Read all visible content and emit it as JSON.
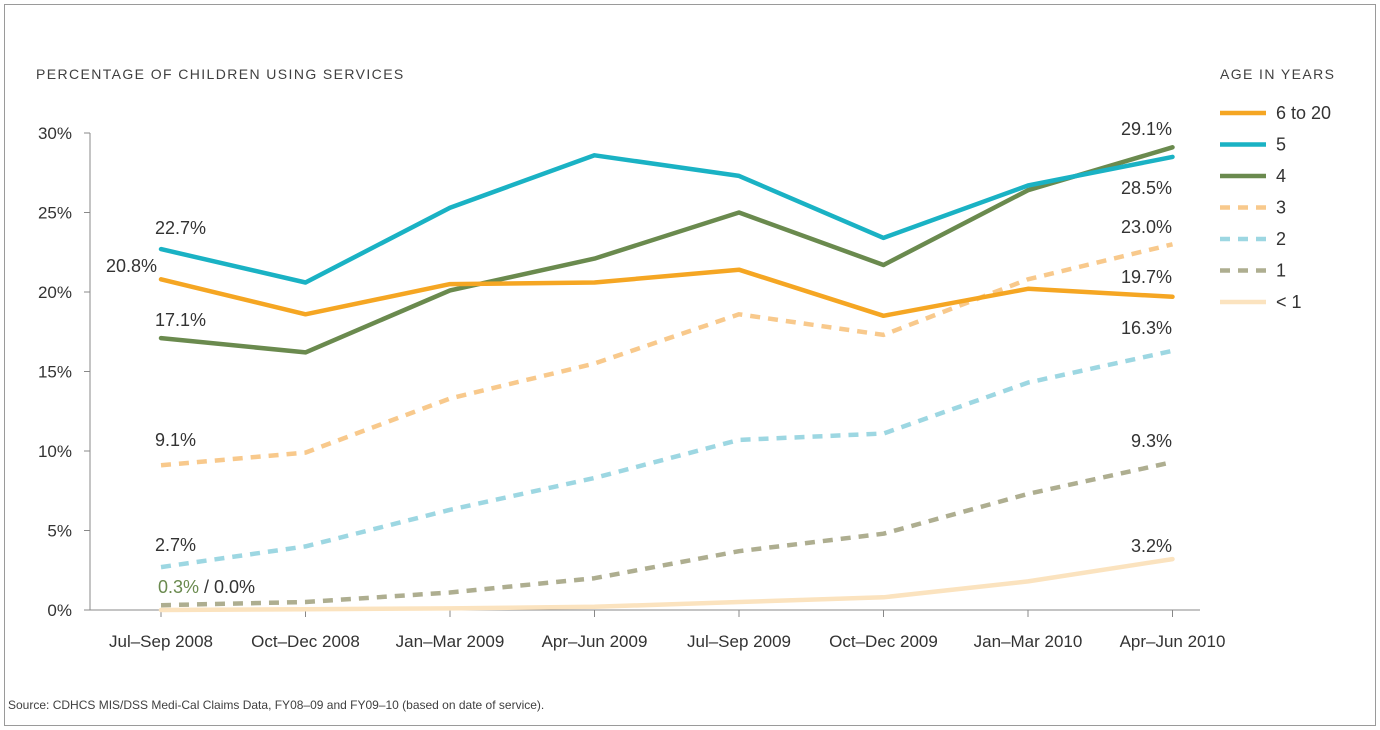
{
  "y_axis_title": "PERCENTAGE OF CHILDREN USING SERVICES",
  "legend_title": "AGE IN YEARS",
  "source": "Source: CDHCS MIS/DSS Medi-Cal Claims Data, FY08–09 and FY09–10 (based on date of service).",
  "chart_data": {
    "type": "line",
    "ylabel": "PERCENTAGE OF CHILDREN USING SERVICES",
    "ylim": [
      0,
      30
    ],
    "yticks": [
      "0%",
      "5%",
      "10%",
      "15%",
      "20%",
      "25%",
      "30%"
    ],
    "grid": false,
    "legend_position": "right",
    "legend_title": "AGE IN YEARS",
    "categories": [
      "Jul–Sep 2008",
      "Oct–Dec 2008",
      "Jan–Mar 2009",
      "Apr–Jun 2009",
      "Jul–Sep 2009",
      "Oct–Dec 2009",
      "Jan–Mar 2010",
      "Apr–Jun 2010"
    ],
    "series": [
      {
        "name": "6 to 20",
        "color": "#F5A623",
        "dashed": false,
        "values": [
          20.8,
          18.6,
          20.5,
          20.6,
          21.4,
          18.5,
          20.2,
          19.7
        ]
      },
      {
        "name": "5",
        "color": "#1AB2C4",
        "dashed": false,
        "values": [
          22.7,
          20.6,
          25.3,
          28.6,
          27.3,
          23.4,
          26.7,
          28.5
        ]
      },
      {
        "name": "4",
        "color": "#6A8A4E",
        "dashed": false,
        "values": [
          17.1,
          16.2,
          20.1,
          22.1,
          25.0,
          21.7,
          26.4,
          29.1
        ]
      },
      {
        "name": "3",
        "color": "#F8C98C",
        "dashed": true,
        "values": [
          9.1,
          9.9,
          13.3,
          15.5,
          18.6,
          17.3,
          20.8,
          23.0
        ]
      },
      {
        "name": "2",
        "color": "#9DD7E2",
        "dashed": true,
        "values": [
          2.7,
          4.0,
          6.3,
          8.3,
          10.7,
          11.1,
          14.3,
          16.3
        ]
      },
      {
        "name": "1",
        "color": "#AEAE90",
        "dashed": true,
        "values": [
          0.3,
          0.5,
          1.1,
          2.0,
          3.7,
          4.8,
          7.3,
          9.3
        ]
      },
      {
        "name": "< 1",
        "color": "#FBE3BF",
        "dashed": false,
        "values": [
          0.0,
          0.05,
          0.1,
          0.2,
          0.5,
          0.8,
          1.8,
          3.2
        ]
      }
    ],
    "annotations": [
      {
        "text": "22.7%",
        "color": "#333333"
      },
      {
        "text": "20.8%",
        "color": "#333333"
      },
      {
        "text": "17.1%",
        "color": "#333333"
      },
      {
        "text": "9.1%",
        "color": "#333333"
      },
      {
        "text": "2.7%",
        "color": "#333333"
      },
      {
        "text": "29.1%",
        "color": "#333333"
      },
      {
        "text": "28.5%",
        "color": "#333333"
      },
      {
        "text": "23.0%",
        "color": "#333333"
      },
      {
        "text": "19.7%",
        "color": "#333333"
      },
      {
        "text": "16.3%",
        "color": "#333333"
      },
      {
        "text": "9.3%",
        "color": "#333333"
      },
      {
        "text": "3.2%",
        "color": "#333333"
      }
    ],
    "start_label": {
      "part1": "0.3%",
      "part1_color": "#6A8A4E",
      "part2": " / 0.0%"
    }
  }
}
